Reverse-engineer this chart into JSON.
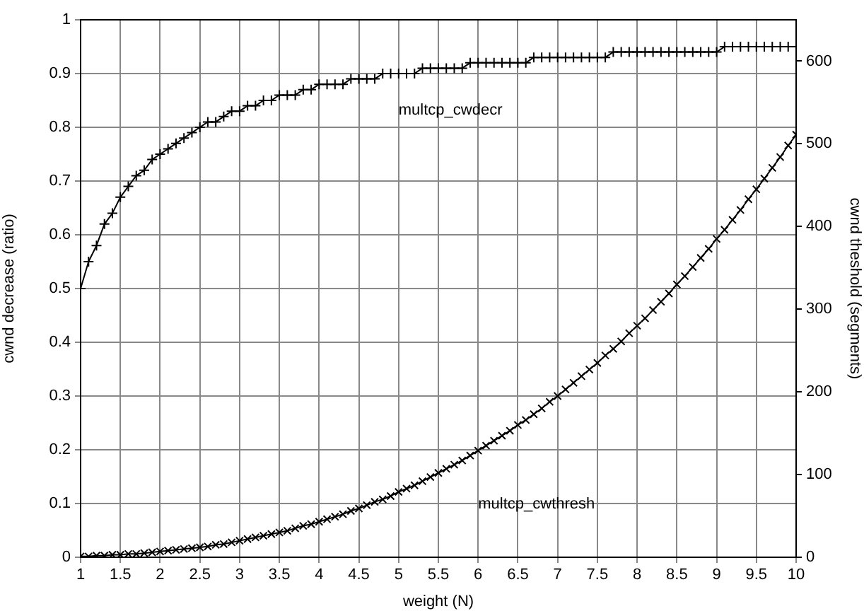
{
  "chart_data": {
    "type": "line",
    "xlabel": "weight (N)",
    "ylabel": "cwnd decrease (ratio)",
    "y2label": "cwnd theshold (segments)",
    "x": [
      1.0,
      1.1,
      1.2,
      1.3,
      1.4,
      1.5,
      1.6,
      1.7,
      1.8,
      1.9,
      2.0,
      2.1,
      2.2,
      2.3,
      2.4,
      2.5,
      2.6,
      2.7,
      2.8,
      2.9,
      3.0,
      3.1,
      3.2,
      3.3,
      3.4,
      3.5,
      3.6,
      3.7,
      3.8,
      3.9,
      4.0,
      4.1,
      4.2,
      4.3,
      4.4,
      4.5,
      4.6,
      4.7,
      4.8,
      4.9,
      5.0,
      5.1,
      5.2,
      5.3,
      5.4,
      5.5,
      5.6,
      5.7,
      5.8,
      5.9,
      6.0,
      6.1,
      6.2,
      6.3,
      6.4,
      6.5,
      6.6,
      6.7,
      6.8,
      6.9,
      7.0,
      7.1,
      7.2,
      7.3,
      7.4,
      7.5,
      7.6,
      7.7,
      7.8,
      7.9,
      8.0,
      8.1,
      8.2,
      8.3,
      8.4,
      8.5,
      8.6,
      8.7,
      8.8,
      8.9,
      9.0,
      9.1,
      9.2,
      9.3,
      9.4,
      9.5,
      9.6,
      9.7,
      9.8,
      9.9,
      10.0
    ],
    "series": [
      {
        "name": "multcp_cwdecr",
        "color": "#000000",
        "marker": "cross",
        "values": [
          0.5,
          0.55,
          0.58,
          0.62,
          0.64,
          0.67,
          0.69,
          0.71,
          0.72,
          0.74,
          0.75,
          0.76,
          0.77,
          0.78,
          0.79,
          0.8,
          0.81,
          0.81,
          0.82,
          0.83,
          0.83,
          0.84,
          0.84,
          0.85,
          0.85,
          0.86,
          0.86,
          0.86,
          0.87,
          0.87,
          0.88,
          0.88,
          0.88,
          0.88,
          0.89,
          0.89,
          0.89,
          0.89,
          0.9,
          0.9,
          0.9,
          0.9,
          0.9,
          0.91,
          0.91,
          0.91,
          0.91,
          0.91,
          0.91,
          0.92,
          0.92,
          0.92,
          0.92,
          0.92,
          0.92,
          0.92,
          0.92,
          0.93,
          0.93,
          0.93,
          0.93,
          0.93,
          0.93,
          0.93,
          0.93,
          0.93,
          0.93,
          0.94,
          0.94,
          0.94,
          0.94,
          0.94,
          0.94,
          0.94,
          0.94,
          0.94,
          0.94,
          0.94,
          0.94,
          0.94,
          0.94,
          0.95,
          0.95,
          0.95,
          0.95,
          0.95,
          0.95,
          0.95,
          0.95,
          0.95,
          0.95
        ]
      },
      {
        "name": "multcp_cwthresh",
        "color": "#000000",
        "marker": "x",
        "axis": "y2",
        "values": [
          1,
          1,
          2,
          2,
          3,
          3,
          4,
          4,
          5,
          6,
          7,
          8,
          9,
          10,
          11,
          12,
          13,
          15,
          16,
          18,
          20,
          22,
          24,
          26,
          28,
          30,
          32,
          35,
          38,
          40,
          43,
          46,
          49,
          52,
          56,
          59,
          63,
          67,
          70,
          74,
          79,
          83,
          87,
          92,
          97,
          102,
          107,
          112,
          117,
          123,
          129,
          135,
          141,
          147,
          153,
          160,
          166,
          173,
          180,
          188,
          195,
          203,
          211,
          219,
          227,
          235,
          244,
          252,
          261,
          271,
          280,
          289,
          299,
          309,
          319,
          330,
          340,
          351,
          362,
          373,
          385,
          396,
          408,
          420,
          433,
          445,
          458,
          471,
          484,
          498,
          511
        ]
      }
    ],
    "xlim": [
      1,
      10
    ],
    "xticks": [
      1,
      1.5,
      2,
      2.5,
      3,
      3.5,
      4,
      4.5,
      5,
      5.5,
      6,
      6.5,
      7,
      7.5,
      8,
      8.5,
      9,
      9.5,
      10
    ],
    "ylim": [
      0,
      1
    ],
    "yticks": [
      0,
      0.1,
      0.2,
      0.3,
      0.4,
      0.5,
      0.6,
      0.7,
      0.8,
      0.9,
      1
    ],
    "y2lim": [
      0,
      650
    ],
    "y2ticks": [
      0,
      100,
      200,
      300,
      400,
      500,
      600
    ],
    "grid": true,
    "line_style": "solid"
  }
}
